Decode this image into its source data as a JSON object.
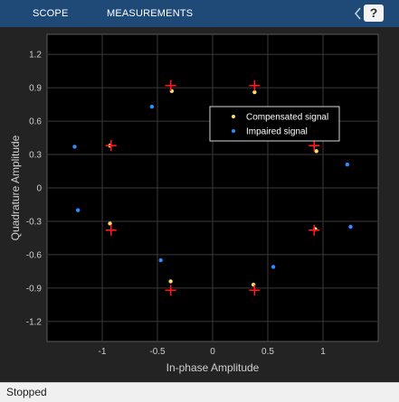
{
  "toolstrip": {
    "tabs": [
      {
        "label": "SCOPE"
      },
      {
        "label": "MEASUREMENTS"
      }
    ],
    "help_label": "?"
  },
  "status": {
    "text": "Stopped"
  },
  "colors": {
    "compensated": "#ffe066",
    "impaired": "#2f8cff",
    "reference": "#ff1a1a",
    "toolstrip": "#1f4a78"
  },
  "chart_data": {
    "type": "scatter",
    "xlabel": "In-phase Amplitude",
    "ylabel": "Quadrature Amplitude",
    "xlim": [
      -1.5,
      1.5
    ],
    "ylim": [
      -1.38,
      1.38
    ],
    "xticks": [
      -1,
      -0.5,
      0,
      0.5,
      1
    ],
    "xticklabels": [
      "-1",
      "-0.5",
      "0",
      "0.5",
      "1"
    ],
    "yticks": [
      1.2,
      0.9,
      0.6,
      0.3,
      0,
      -0.3,
      -0.6,
      -0.9,
      -1.2
    ],
    "yticklabels": [
      "1.2",
      "0.9",
      "0.6",
      "0.3",
      "0",
      "-0.3",
      "-0.6",
      "-0.9",
      "-1.2"
    ],
    "grid": true,
    "legend_position": "upper-right inside",
    "series": [
      {
        "name": "Compensated signal",
        "marker": "dot",
        "color": "#ffe066",
        "points": [
          [
            0.38,
            0.86
          ],
          [
            -0.37,
            0.87
          ],
          [
            0.94,
            0.33
          ],
          [
            -0.93,
            0.38
          ],
          [
            -0.93,
            -0.32
          ],
          [
            0.93,
            -0.37
          ],
          [
            -0.38,
            -0.84
          ],
          [
            0.37,
            -0.87
          ]
        ]
      },
      {
        "name": "Impaired signal",
        "marker": "dot",
        "color": "#2f8cff",
        "points": [
          [
            -0.55,
            0.73
          ],
          [
            -1.25,
            0.37
          ],
          [
            -1.22,
            -0.2
          ],
          [
            -0.47,
            -0.65
          ],
          [
            0.55,
            -0.71
          ],
          [
            1.25,
            -0.35
          ],
          [
            1.22,
            0.21
          ]
        ]
      },
      {
        "name": "",
        "marker": "plus",
        "color": "#ff1a1a",
        "points": [
          [
            -0.38,
            0.92
          ],
          [
            0.38,
            0.92
          ],
          [
            -0.92,
            0.38
          ],
          [
            0.92,
            0.38
          ],
          [
            -0.92,
            -0.38
          ],
          [
            0.92,
            -0.38
          ],
          [
            -0.38,
            -0.92
          ],
          [
            0.38,
            -0.92
          ]
        ]
      }
    ]
  }
}
